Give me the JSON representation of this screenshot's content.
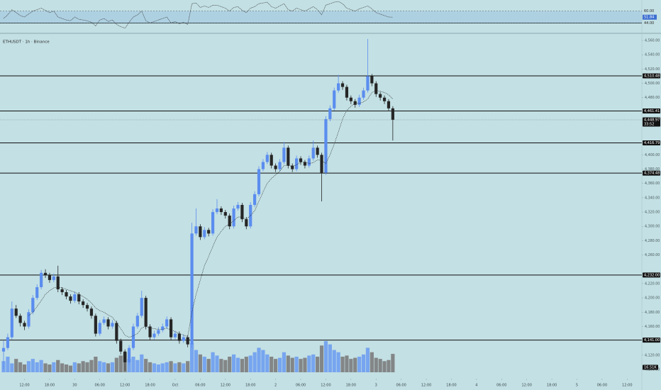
{
  "chart_data": {
    "type": "candlestick",
    "title": "ETHUSDT · 1h · Binance",
    "colors": {
      "up": "#5b8def",
      "down": "#262626",
      "volume_up": "#6f9ef0",
      "volume_down": "#7c7c7c",
      "ma": "#222222",
      "rsi": "#3a3a3a",
      "level": "#111111",
      "box": "#131313",
      "current": "#7a8a8e"
    },
    "candles": [
      [
        4125,
        4140,
        4100,
        4130
      ],
      [
        4130,
        4150,
        4127,
        4145
      ],
      [
        4145,
        4195,
        4142,
        4185
      ],
      [
        4185,
        4190,
        4172,
        4175
      ],
      [
        4175,
        4178,
        4160,
        4165
      ],
      [
        4165,
        4168,
        4155,
        4160
      ],
      [
        4160,
        4184,
        4157,
        4180
      ],
      [
        4180,
        4204,
        4177,
        4200
      ],
      [
        4200,
        4219,
        4197,
        4215
      ],
      [
        4215,
        4239,
        4212,
        4235
      ],
      [
        4235,
        4240,
        4228,
        4232
      ],
      [
        4232,
        4235,
        4221,
        4225
      ],
      [
        4225,
        4234,
        4222,
        4230
      ],
      [
        4230,
        4245,
        4208,
        4212
      ],
      [
        4212,
        4215,
        4204,
        4208
      ],
      [
        4208,
        4211,
        4198,
        4202
      ],
      [
        4202,
        4205,
        4192,
        4196
      ],
      [
        4196,
        4209,
        4193,
        4205
      ],
      [
        4205,
        4208,
        4191,
        4195
      ],
      [
        4195,
        4198,
        4186,
        4190
      ],
      [
        4190,
        4193,
        4181,
        4185
      ],
      [
        4185,
        4188,
        4171,
        4175
      ],
      [
        4175,
        4178,
        4146,
        4150
      ],
      [
        4150,
        4169,
        4147,
        4165
      ],
      [
        4165,
        4174,
        4162,
        4170
      ],
      [
        4170,
        4173,
        4156,
        4160
      ],
      [
        4160,
        4169,
        4157,
        4165
      ],
      [
        4165,
        4168,
        4136,
        4140
      ],
      [
        4140,
        4143,
        4121,
        4125
      ],
      [
        4125,
        4128,
        4098,
        4110
      ],
      [
        4110,
        4134,
        4107,
        4130
      ],
      [
        4130,
        4164,
        4127,
        4160
      ],
      [
        4160,
        4179,
        4157,
        4175
      ],
      [
        4175,
        4210,
        4172,
        4200
      ],
      [
        4200,
        4203,
        4156,
        4160
      ],
      [
        4160,
        4163,
        4141,
        4145
      ],
      [
        4145,
        4154,
        4142,
        4150
      ],
      [
        4150,
        4159,
        4147,
        4155
      ],
      [
        4155,
        4164,
        4152,
        4160
      ],
      [
        4160,
        4174,
        4157,
        4170
      ],
      [
        4170,
        4173,
        4141,
        4145
      ],
      [
        4145,
        4154,
        4142,
        4150
      ],
      [
        4150,
        4153,
        4136,
        4140
      ],
      [
        4140,
        4149,
        4137,
        4145
      ],
      [
        4145,
        4148,
        4131,
        4135
      ],
      [
        4135,
        4305,
        4130,
        4290
      ],
      [
        4290,
        4325,
        4287,
        4300
      ],
      [
        4300,
        4303,
        4281,
        4285
      ],
      [
        4285,
        4299,
        4282,
        4295
      ],
      [
        4295,
        4298,
        4286,
        4290
      ],
      [
        4290,
        4324,
        4287,
        4320
      ],
      [
        4320,
        4338,
        4317,
        4325
      ],
      [
        4325,
        4328,
        4316,
        4320
      ],
      [
        4320,
        4323,
        4311,
        4315
      ],
      [
        4315,
        4318,
        4296,
        4300
      ],
      [
        4300,
        4329,
        4297,
        4325
      ],
      [
        4325,
        4334,
        4322,
        4330
      ],
      [
        4330,
        4333,
        4306,
        4310
      ],
      [
        4310,
        4313,
        4296,
        4300
      ],
      [
        4300,
        4334,
        4297,
        4330
      ],
      [
        4330,
        4349,
        4327,
        4345
      ],
      [
        4345,
        4384,
        4342,
        4380
      ],
      [
        4380,
        4394,
        4377,
        4390
      ],
      [
        4390,
        4404,
        4387,
        4400
      ],
      [
        4400,
        4403,
        4381,
        4385
      ],
      [
        4385,
        4388,
        4376,
        4380
      ],
      [
        4380,
        4394,
        4377,
        4390
      ],
      [
        4390,
        4418,
        4387,
        4410
      ],
      [
        4410,
        4413,
        4381,
        4385
      ],
      [
        4385,
        4388,
        4376,
        4380
      ],
      [
        4380,
        4399,
        4377,
        4395
      ],
      [
        4395,
        4398,
        4386,
        4390
      ],
      [
        4390,
        4393,
        4381,
        4385
      ],
      [
        4385,
        4399,
        4382,
        4395
      ],
      [
        4395,
        4420,
        4392,
        4410
      ],
      [
        4410,
        4413,
        4396,
        4400
      ],
      [
        4400,
        4403,
        4335,
        4375
      ],
      [
        4375,
        4454,
        4372,
        4450
      ],
      [
        4450,
        4469,
        4447,
        4465
      ],
      [
        4465,
        4494,
        4462,
        4490
      ],
      [
        4490,
        4512,
        4487,
        4500
      ],
      [
        4500,
        4503,
        4491,
        4495
      ],
      [
        4495,
        4498,
        4476,
        4480
      ],
      [
        4480,
        4483,
        4471,
        4475
      ],
      [
        4475,
        4478,
        4466,
        4470
      ],
      [
        4470,
        4484,
        4467,
        4480
      ],
      [
        4480,
        4494,
        4477,
        4490
      ],
      [
        4490,
        4562,
        4487,
        4510
      ],
      [
        4510,
        4513,
        4496,
        4500
      ],
      [
        4500,
        4503,
        4481,
        4485
      ],
      [
        4485,
        4488,
        4476,
        4480
      ],
      [
        4480,
        4483,
        4471,
        4475
      ],
      [
        4475,
        4478,
        4461,
        4465
      ],
      [
        4465,
        4468,
        4420,
        4449
      ]
    ],
    "ma": [
      null,
      null,
      null,
      null,
      null,
      null,
      4175,
      4180,
      4188,
      4196,
      4205,
      4210,
      4214,
      4215,
      4214,
      4212,
      4210,
      4208,
      4205,
      4202,
      4198,
      4193,
      4186,
      4182,
      4180,
      4176,
      4173,
      4165,
      4157,
      4148,
      4145,
      4147,
      4150,
      4158,
      4160,
      4158,
      4157,
      4156,
      4156,
      4158,
      4155,
      4153,
      4150,
      4148,
      4146,
      4180,
      4205,
      4225,
      4245,
      4258,
      4272,
      4285,
      4293,
      4300,
      4303,
      4308,
      4313,
      4313,
      4310,
      4315,
      4322,
      4335,
      4348,
      4360,
      4367,
      4372,
      4377,
      4385,
      4385,
      4384,
      4386,
      4390,
      4390,
      4388,
      4389,
      4393,
      4392,
      4388,
      4400,
      4415,
      4432,
      4450,
      4462,
      4468,
      4472,
      4472,
      4474,
      4478,
      4487,
      4490,
      4489,
      4487,
      4484,
      4478
    ],
    "volume": [
      10,
      14,
      8,
      12,
      9,
      7,
      10,
      12,
      9,
      11,
      8,
      7,
      9,
      11,
      8,
      7,
      6,
      9,
      8,
      10,
      9,
      11,
      14,
      10,
      9,
      8,
      9,
      13,
      15,
      18,
      12,
      14,
      11,
      16,
      12,
      9,
      8,
      7,
      8,
      9,
      10,
      8,
      9,
      8,
      10,
      26,
      20,
      16,
      14,
      12,
      18,
      15,
      12,
      11,
      14,
      16,
      13,
      12,
      14,
      15,
      18,
      22,
      20,
      16,
      14,
      12,
      13,
      18,
      15,
      13,
      14,
      12,
      13,
      15,
      16,
      14,
      24,
      28,
      25,
      20,
      18,
      14,
      15,
      12,
      13,
      14,
      16,
      22,
      18,
      13,
      12,
      10,
      11,
      16.51
    ],
    "volume_label": "16.51K",
    "rsi": [
      50,
      55,
      62,
      58,
      54,
      52,
      56,
      60,
      62,
      64,
      61,
      58,
      60,
      52,
      50,
      48,
      47,
      52,
      49,
      48,
      47,
      45,
      40,
      48,
      50,
      46,
      48,
      42,
      39,
      37,
      45,
      52,
      55,
      60,
      47,
      44,
      46,
      48,
      50,
      52,
      44,
      46,
      43,
      45,
      42,
      70,
      71,
      65,
      67,
      65,
      68,
      68,
      66,
      64,
      60,
      65,
      66,
      61,
      58,
      64,
      66,
      70,
      71,
      72,
      66,
      64,
      67,
      70,
      62,
      60,
      64,
      62,
      60,
      63,
      66,
      62,
      55,
      68,
      70,
      72,
      73,
      70,
      64,
      62,
      60,
      63,
      65,
      67,
      63,
      58,
      56,
      54,
      52,
      51.84
    ],
    "rsi_ylim": [
      31,
      75
    ],
    "rsi_levels": [
      {
        "value": 60,
        "label": "60.00"
      },
      {
        "value": 44,
        "label": "44.00"
      }
    ],
    "rsi_current": 51.84,
    "ylim": [
      4097,
      4560
    ],
    "yticks": [
      {
        "value": 4560,
        "label": "4,560.00"
      },
      {
        "value": 4540,
        "label": "4,540.00"
      },
      {
        "value": 4520,
        "label": "4,520.00"
      },
      {
        "value": 4500,
        "label": "4,500.00"
      },
      {
        "value": 4480,
        "label": "4,480.00"
      },
      {
        "value": 4400,
        "label": "4,400.00"
      },
      {
        "value": 4380,
        "label": "4,380.00"
      },
      {
        "value": 4360,
        "label": "4,360.00"
      },
      {
        "value": 4340,
        "label": "4,340.00"
      },
      {
        "value": 4320,
        "label": "4,320.00"
      },
      {
        "value": 4300,
        "label": "4,300.00"
      },
      {
        "value": 4280,
        "label": "4,280.00"
      },
      {
        "value": 4260,
        "label": "4,260.00"
      },
      {
        "value": 4220,
        "label": "4,220.00"
      },
      {
        "value": 4200,
        "label": "4,200.00"
      },
      {
        "value": 4180,
        "label": "4,180.00"
      },
      {
        "value": 4160,
        "label": "4,160.00"
      },
      {
        "value": 4120,
        "label": "4,120.00"
      },
      {
        "value": 4100,
        "label": "4,100.00"
      }
    ],
    "xlim": [
      -0.85,
      152.5
    ],
    "xticks": [
      {
        "value": 5,
        "label": "12:00"
      },
      {
        "value": 11,
        "label": "18:00"
      },
      {
        "value": 17,
        "label": "30"
      },
      {
        "value": 23,
        "label": "06:00"
      },
      {
        "value": 29,
        "label": "12:00"
      },
      {
        "value": 35,
        "label": "18:00"
      },
      {
        "value": 41,
        "label": "Oct"
      },
      {
        "value": 47,
        "label": "06:00"
      },
      {
        "value": 53,
        "label": "12:00"
      },
      {
        "value": 59,
        "label": "18:00"
      },
      {
        "value": 65,
        "label": "2"
      },
      {
        "value": 71,
        "label": "06:00"
      },
      {
        "value": 77,
        "label": "12:00"
      },
      {
        "value": 83,
        "label": "18:00"
      },
      {
        "value": 89,
        "label": "3"
      },
      {
        "value": 95,
        "label": "06:00"
      },
      {
        "value": 101,
        "label": "12:00"
      },
      {
        "value": 107,
        "label": "18:00"
      },
      {
        "value": 113,
        "label": "4"
      },
      {
        "value": 119,
        "label": "06:00"
      },
      {
        "value": 125,
        "label": "12:00"
      },
      {
        "value": 131,
        "label": "18:00"
      },
      {
        "value": 137,
        "label": "5"
      },
      {
        "value": 143,
        "label": "06:00"
      },
      {
        "value": 149,
        "label": "12:00"
      }
    ],
    "levels": [
      {
        "value": 4510.48,
        "label": "4,510.48"
      },
      {
        "value": 4461.41,
        "label": "4,461.41"
      },
      {
        "value": 4416.79,
        "label": "4,416.79"
      },
      {
        "value": 4374.48,
        "label": "4,374.48"
      },
      {
        "value": 4232,
        "label": "4,232.00"
      },
      {
        "value": 4141,
        "label": "4,141.00"
      }
    ],
    "current_price": {
      "value": 4448.97,
      "label": "4,448.97"
    },
    "countdown": "33:52"
  }
}
